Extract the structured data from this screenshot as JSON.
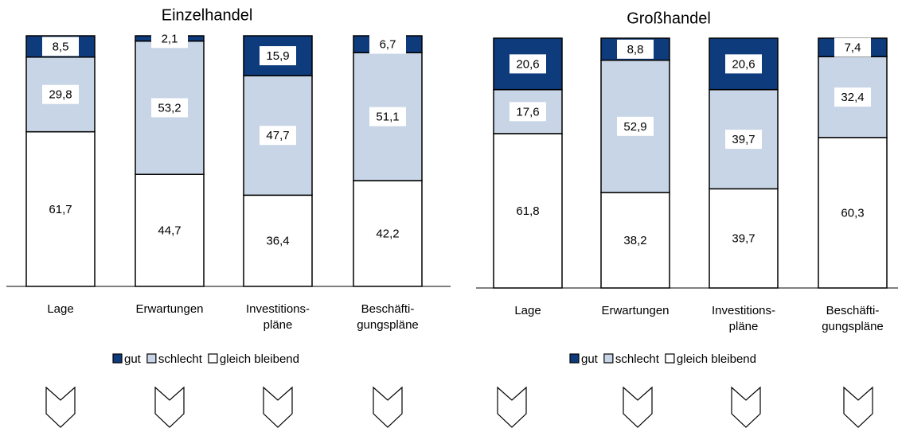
{
  "chart_data": [
    {
      "type": "stacked-bar",
      "title": "Einzelhandel",
      "categories": [
        [
          "Lage"
        ],
        [
          "Erwartungen"
        ],
        [
          "Investitions-",
          "pläne"
        ],
        [
          "Beschäfti-",
          "gungspläne"
        ]
      ],
      "series": [
        {
          "name": "gut",
          "color": "#0d3b7c",
          "values": [
            8.5,
            2.1,
            15.9,
            6.7
          ],
          "value_labels": [
            "8,5",
            "2,1",
            "15,9",
            "6,7"
          ]
        },
        {
          "name": "schlecht",
          "color": "#c8d5e6",
          "values": [
            29.8,
            53.2,
            47.7,
            51.1
          ],
          "value_labels": [
            "29,8",
            "53,2",
            "47,7",
            "51,1"
          ]
        },
        {
          "name": "gleich bleibend",
          "color": "#ffffff",
          "values": [
            61.7,
            44.7,
            36.4,
            42.2
          ],
          "value_labels": [
            "61,7",
            "44,7",
            "36,4",
            "42,2"
          ]
        }
      ]
    },
    {
      "type": "stacked-bar",
      "title": "Großhandel",
      "categories": [
        [
          "Lage"
        ],
        [
          "Erwartungen"
        ],
        [
          "Investitions-",
          "pläne"
        ],
        [
          "Beschäfti-",
          "gungspläne"
        ]
      ],
      "series": [
        {
          "name": "gut",
          "color": "#0d3b7c",
          "values": [
            20.6,
            8.8,
            20.6,
            7.4
          ],
          "value_labels": [
            "20,6",
            "8,8",
            "20,6",
            "7,4"
          ]
        },
        {
          "name": "schlecht",
          "color": "#c8d5e6",
          "values": [
            17.6,
            52.9,
            39.7,
            32.4
          ],
          "value_labels": [
            "17,6",
            "52,9",
            "39,7",
            "32,4"
          ]
        },
        {
          "name": "gleich bleibend",
          "color": "#ffffff",
          "values": [
            61.8,
            38.2,
            39.7,
            60.3
          ],
          "value_labels": [
            "61,8",
            "38,2",
            "39,7",
            "60,3"
          ]
        }
      ]
    }
  ]
}
